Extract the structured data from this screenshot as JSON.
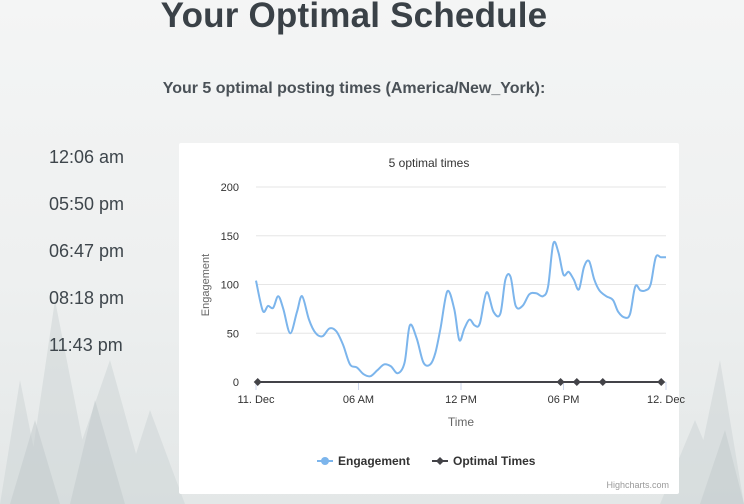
{
  "page": {
    "title": "Your Optimal Schedule",
    "subtitle": "Your 5 optimal posting times (America/New_York):"
  },
  "times": [
    "12:06 am",
    "05:50 pm",
    "06:47 pm",
    "08:18 pm",
    "11:43 pm"
  ],
  "colors": {
    "engagement": "#7cb5ec",
    "optimal": "#434348",
    "grid": "#e6e6e6",
    "axis_text": "#333333"
  },
  "chart_data": {
    "type": "line",
    "title": "5 optimal times",
    "ylabel": "Engagement",
    "xlabel": "Time",
    "ylim": [
      0,
      200
    ],
    "yticks": [
      "0",
      "50",
      "100",
      "150",
      "200"
    ],
    "xlim": [
      0,
      24
    ],
    "xticks": [
      {
        "x": 0,
        "label": "11. Dec"
      },
      {
        "x": 6,
        "label": "06 AM"
      },
      {
        "x": 12,
        "label": "12 PM"
      },
      {
        "x": 18,
        "label": "06 PM"
      },
      {
        "x": 24,
        "label": "12. Dec"
      }
    ],
    "grid": true,
    "legend_position": "bottom-center",
    "credits": "Highcharts.com",
    "series": [
      {
        "name": "Engagement",
        "x": [
          0,
          0.4,
          0.7,
          1.0,
          1.3,
          1.6,
          2.0,
          2.4,
          2.7,
          3.1,
          3.5,
          3.9,
          4.3,
          4.7,
          5.1,
          5.5,
          5.9,
          6.3,
          6.7,
          7.1,
          7.5,
          7.9,
          8.3,
          8.7,
          9.0,
          9.4,
          9.8,
          10.2,
          10.5,
          10.8,
          11.2,
          11.6,
          11.9,
          12.2,
          12.5,
          12.8,
          13.1,
          13.5,
          13.9,
          14.3,
          14.6,
          14.9,
          15.2,
          15.6,
          16.0,
          16.4,
          16.8,
          17.1,
          17.4,
          17.7,
          18.0,
          18.3,
          18.6,
          18.9,
          19.2,
          19.5,
          19.8,
          20.1,
          20.5,
          20.9,
          21.2,
          21.6,
          21.9,
          22.2,
          22.5,
          22.8,
          23.1,
          23.4,
          23.7,
          24.0
        ],
        "values": [
          104,
          73,
          78,
          76,
          88,
          75,
          50,
          72,
          88,
          64,
          50,
          47,
          55,
          52,
          38,
          18,
          15,
          8,
          6,
          12,
          18,
          16,
          9,
          20,
          58,
          45,
          20,
          18,
          30,
          55,
          93,
          75,
          43,
          55,
          64,
          58,
          60,
          92,
          72,
          70,
          105,
          108,
          78,
          78,
          90,
          91,
          88,
          98,
          142,
          133,
          110,
          113,
          105,
          95,
          118,
          124,
          105,
          94,
          88,
          84,
          72,
          66,
          70,
          98,
          94,
          94,
          100,
          128,
          128,
          128
        ]
      },
      {
        "name": "Optimal Times",
        "x": [
          0.1,
          17.83,
          18.78,
          20.3,
          23.72
        ],
        "values": [
          0,
          0,
          0,
          0,
          0
        ]
      }
    ]
  }
}
